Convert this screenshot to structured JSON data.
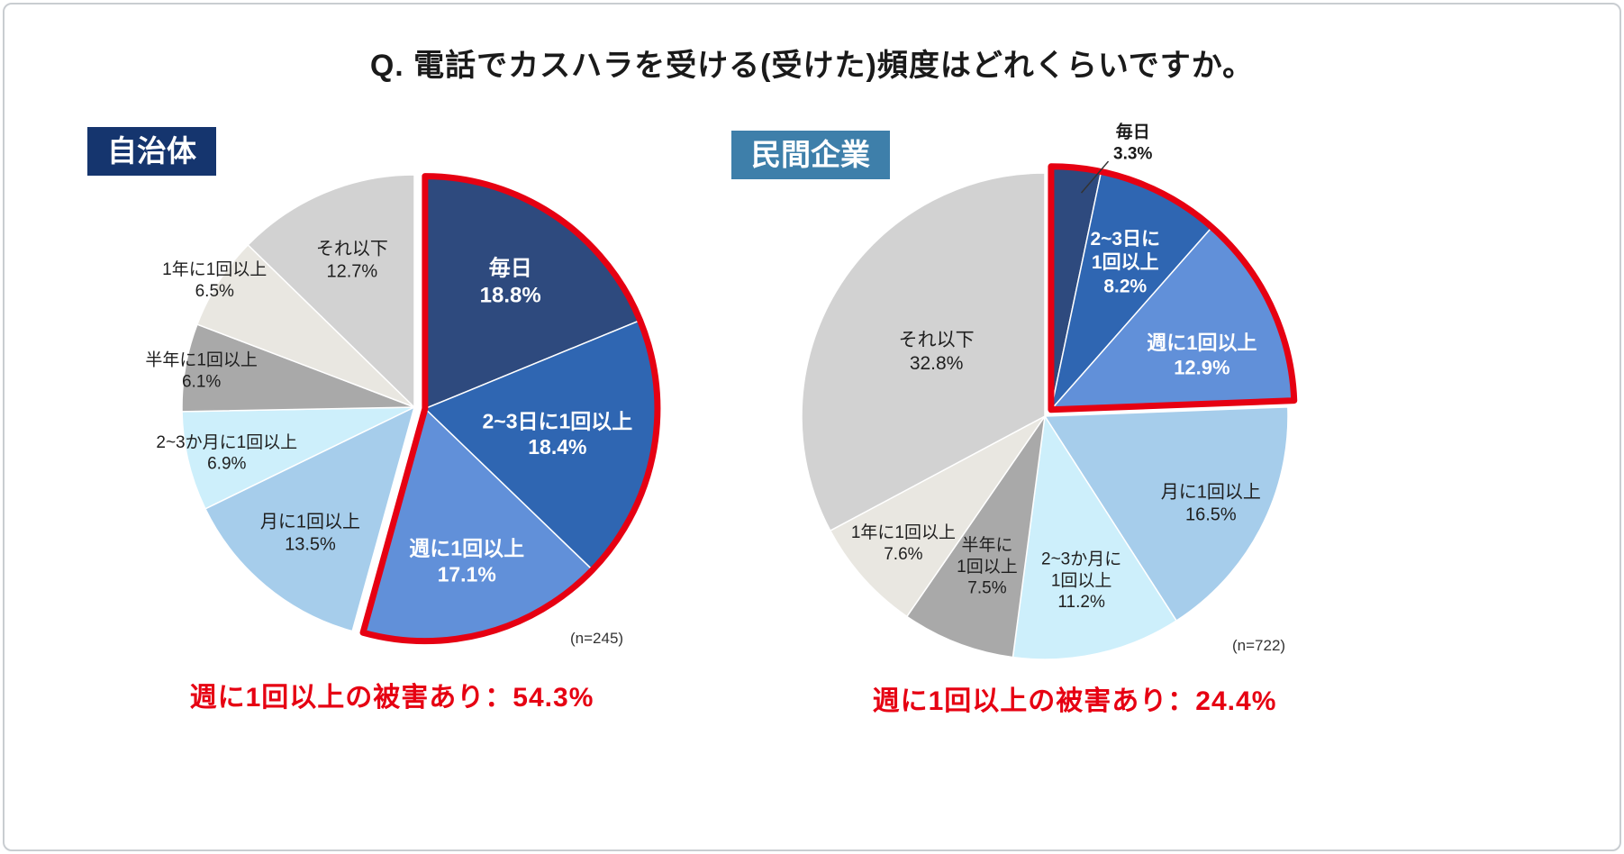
{
  "title": "Q. 電話でカスハラを受ける(受けた)頻度はどれくらいですか。",
  "colors": {
    "highlight_outline": "#E60012",
    "note_red": "#E60012",
    "municipality_badge_bg": "#15356E",
    "private_badge_bg": "#3E7FAA"
  },
  "chart_data": [
    {
      "type": "pie",
      "group": "自治体",
      "badge_bg": "#15356E",
      "n_label": "(n=245)",
      "note": "週に1回以上の被害あり：54.3%",
      "note_color": "#E60012",
      "highlight": {
        "indices": [
          0,
          1,
          2
        ],
        "outline_color": "#E60012",
        "meaning": "週に1回以上",
        "total_percent": 54.3
      },
      "slices": [
        {
          "label": "毎日",
          "value": 18.8,
          "color": "#2E4A7E",
          "lines": [
            "毎日",
            "18.8%"
          ],
          "text_color": "#FFFFFF",
          "bold": true,
          "size": 24,
          "lr": 0.66
        },
        {
          "label": "2~3日に1回以上",
          "value": 18.4,
          "color": "#2F66B2",
          "lines": [
            "2~3日に1回以上",
            "18.4%"
          ],
          "text_color": "#FFFFFF",
          "bold": true,
          "size": 23,
          "lr": 0.58
        },
        {
          "label": "週に1回以上",
          "value": 17.1,
          "color": "#6190D9",
          "lines": [
            "週に1回以上",
            "17.1%"
          ],
          "text_color": "#FFFFFF",
          "bold": true,
          "size": 23,
          "lr": 0.68
        },
        {
          "label": "月に1回以上",
          "value": 13.5,
          "color": "#A6CDEB",
          "lines": [
            "月に1回以上",
            "13.5%"
          ],
          "text_color": "#1F1F1F",
          "bold": false,
          "size": 20,
          "lr": 0.7
        },
        {
          "label": "2~3か月に1回以上",
          "value": 6.9,
          "color": "#CDEFFB",
          "lines": [
            "2~3か月に1回以上",
            "6.9%"
          ],
          "text_color": "#1F1F1F",
          "bold": false,
          "size": 19,
          "lr": 0.83
        },
        {
          "label": "半年に1回以上",
          "value": 6.1,
          "color": "#A9A9A9",
          "lines": [
            "半年に1回以上",
            "6.1%"
          ],
          "text_color": "#1F1F1F",
          "bold": false,
          "size": 19,
          "lr": 0.93
        },
        {
          "label": "1年に1回以上",
          "value": 6.5,
          "color": "#E9E7E1",
          "lines": [
            "1年に1回以上",
            "6.5%"
          ],
          "text_color": "#1F1F1F",
          "bold": false,
          "size": 19,
          "lr": 1.02
        },
        {
          "label": "それ以下",
          "value": 12.7,
          "color": "#D2D2D2",
          "lines": [
            "それ以下",
            "12.7%"
          ],
          "text_color": "#1F1F1F",
          "bold": false,
          "size": 20,
          "lr": 0.69
        }
      ]
    },
    {
      "type": "pie",
      "group": "民間企業",
      "badge_bg": "#3E7FAA",
      "n_label": "(n=722)",
      "note": "週に1回以上の被害あり：24.4%",
      "note_color": "#E60012",
      "highlight": {
        "indices": [
          0,
          1,
          2
        ],
        "outline_color": "#E60012",
        "meaning": "週に1回以上",
        "total_percent": 24.4
      },
      "slices": [
        {
          "label": "毎日",
          "value": 3.3,
          "color": "#2E4A7E",
          "lines": [
            "毎日",
            "3.3%"
          ],
          "text_color": "#1A1A1A",
          "bold": true,
          "size": 19,
          "lr": 1.15,
          "la": 17,
          "leader": true
        },
        {
          "label": "2~3日に1回以上",
          "value": 8.2,
          "color": "#2F66B2",
          "lines": [
            "2~3日に",
            "1回以上",
            "8.2%"
          ],
          "text_color": "#FFFFFF",
          "bold": true,
          "size": 21,
          "lr": 0.68
        },
        {
          "label": "週に1回以上",
          "value": 12.9,
          "color": "#6190D9",
          "lines": [
            "週に1回以上",
            "12.9%"
          ],
          "text_color": "#FFFFFF",
          "bold": true,
          "size": 22,
          "lr": 0.66,
          "la": 70
        },
        {
          "label": "月に1回以上",
          "value": 16.5,
          "color": "#A6CDEB",
          "lines": [
            "月に1回以上",
            "16.5%"
          ],
          "text_color": "#1F1F1F",
          "bold": false,
          "size": 20,
          "lr": 0.77
        },
        {
          "label": "2~3か月に1回以上",
          "value": 11.2,
          "color": "#CDEFFB",
          "lines": [
            "2~3か月に",
            "1回以上",
            "11.2%"
          ],
          "text_color": "#1F1F1F",
          "bold": false,
          "size": 19,
          "lr": 0.69
        },
        {
          "label": "半年に1回以上",
          "value": 7.5,
          "color": "#A9A9A9",
          "lines": [
            "半年に",
            "1回以上",
            "7.5%"
          ],
          "text_color": "#1F1F1F",
          "bold": false,
          "size": 19,
          "lr": 0.66
        },
        {
          "label": "1年に1回以上",
          "value": 7.6,
          "color": "#E9E7E1",
          "lines": [
            "1年に1回以上",
            "7.6%"
          ],
          "text_color": "#1F1F1F",
          "bold": false,
          "size": 19,
          "lr": 0.78
        },
        {
          "label": "それ以下",
          "value": 32.8,
          "color": "#D2D2D2",
          "lines": [
            "それ以下",
            "32.8%"
          ],
          "text_color": "#1F1F1F",
          "bold": false,
          "size": 21,
          "lr": 0.52
        }
      ]
    }
  ]
}
